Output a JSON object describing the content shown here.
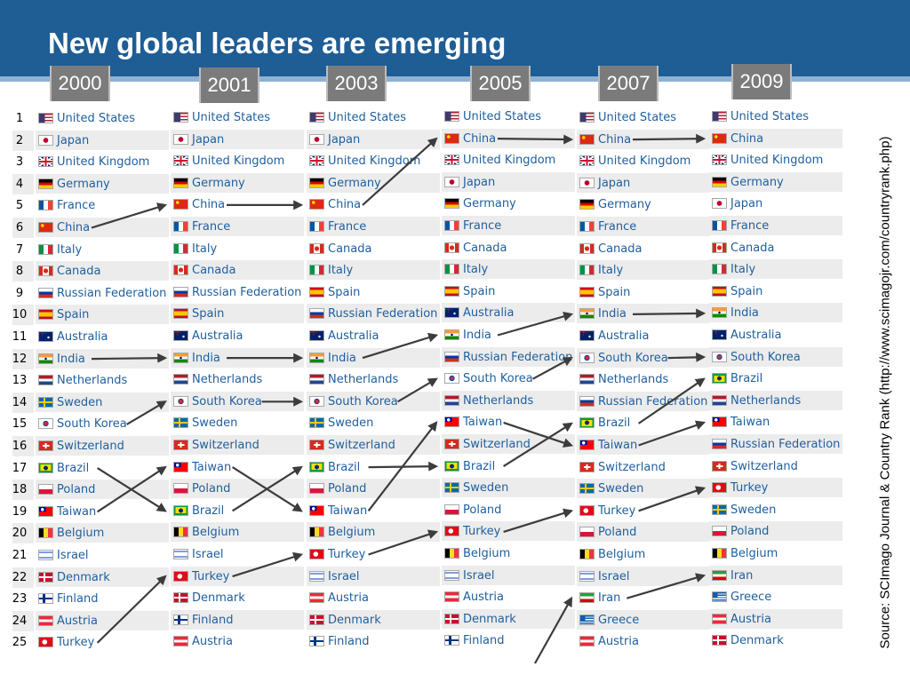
{
  "title": "New global leaders are emerging",
  "source": "Source: SCImago Journal & Country Rank (http://www.scimagojr.com/countryrank.php)",
  "ranks": [
    "1",
    "2",
    "3",
    "4",
    "5",
    "6",
    "7",
    "8",
    "9",
    "10",
    "11",
    "12",
    "13",
    "14",
    "15",
    "16",
    "17",
    "18",
    "19",
    "20",
    "21",
    "22",
    "23",
    "24",
    "25"
  ],
  "columns": [
    {
      "year": "2000",
      "countries": [
        "United States",
        "Japan",
        "United Kingdom",
        "Germany",
        "France",
        "China",
        "Italy",
        "Canada",
        "Russian Federation",
        "Spain",
        "Australia",
        "India",
        "Netherlands",
        "Sweden",
        "South Korea",
        "Switzerland",
        "Brazil",
        "Poland",
        "Taiwan",
        "Belgium",
        "Israel",
        "Denmark",
        "Finland",
        "Austria",
        "Turkey"
      ]
    },
    {
      "year": "2001",
      "countries": [
        "United States",
        "Japan",
        "United Kingdom",
        "Germany",
        "China",
        "France",
        "Italy",
        "Canada",
        "Russian Federation",
        "Spain",
        "Australia",
        "India",
        "Netherlands",
        "South Korea",
        "Sweden",
        "Switzerland",
        "Taiwan",
        "Poland",
        "Brazil",
        "Belgium",
        "Israel",
        "Turkey",
        "Denmark",
        "Finland",
        "Austria"
      ]
    },
    {
      "year": "2003",
      "countries": [
        "United States",
        "Japan",
        "United Kingdom",
        "Germany",
        "China",
        "France",
        "Canada",
        "Italy",
        "Spain",
        "Russian Federation",
        "Australia",
        "India",
        "Netherlands",
        "South Korea",
        "Sweden",
        "Switzerland",
        "Brazil",
        "Poland",
        "Taiwan",
        "Belgium",
        "Turkey",
        "Israel",
        "Austria",
        "Denmark",
        "Finland"
      ]
    },
    {
      "year": "2005",
      "countries": [
        "United States",
        "China",
        "United Kingdom",
        "Japan",
        "Germany",
        "France",
        "Canada",
        "Italy",
        "Spain",
        "Australia",
        "India",
        "Russian Federation",
        "South Korea",
        "Netherlands",
        "Taiwan",
        "Switzerland",
        "Brazil",
        "Sweden",
        "Poland",
        "Turkey",
        "Belgium",
        "Israel",
        "Austria",
        "Denmark",
        "Finland"
      ]
    },
    {
      "year": "2007",
      "countries": [
        "United States",
        "China",
        "United Kingdom",
        "Japan",
        "Germany",
        "France",
        "Canada",
        "Italy",
        "Spain",
        "India",
        "Australia",
        "South Korea",
        "Netherlands",
        "Russian Federation",
        "Brazil",
        "Taiwan",
        "Switzerland",
        "Sweden",
        "Turkey",
        "Poland",
        "Belgium",
        "Israel",
        "Iran",
        "Greece",
        "Austria"
      ]
    },
    {
      "year": "2009",
      "countries": [
        "United States",
        "China",
        "United Kingdom",
        "Germany",
        "Japan",
        "France",
        "Canada",
        "Italy",
        "Spain",
        "India",
        "Australia",
        "South Korea",
        "Brazil",
        "Netherlands",
        "Taiwan",
        "Russian Federation",
        "Switzerland",
        "Turkey",
        "Sweden",
        "Poland",
        "Belgium",
        "Iran",
        "Greece",
        "Austria",
        "Denmark"
      ]
    }
  ]
}
